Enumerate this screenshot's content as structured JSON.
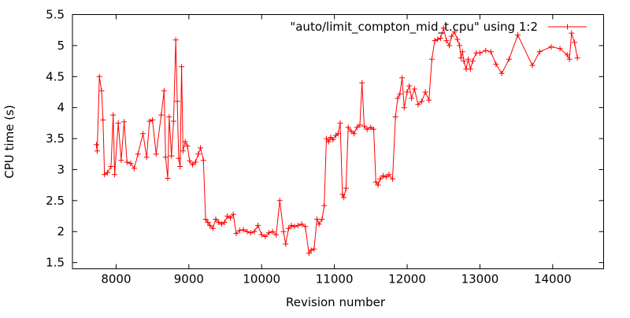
{
  "chart_data": {
    "type": "line",
    "xlabel": "Revision number",
    "ylabel": "CPU time (s)",
    "xlim": [
      7400,
      14700
    ],
    "ylim": [
      1.4,
      5.5
    ],
    "x_ticks": [
      8000,
      9000,
      10000,
      11000,
      12000,
      13000,
      14000
    ],
    "y_ticks": [
      1.5,
      2,
      2.5,
      3,
      3.5,
      4,
      4.5,
      5,
      5.5
    ],
    "x_tick_labels": [
      "8000",
      "9000",
      "10000",
      "11000",
      "12000",
      "13000",
      "14000"
    ],
    "y_tick_labels": [
      "1.5",
      "2",
      "2.5",
      "3",
      "3.5",
      "4",
      "4.5",
      "5",
      "5.5"
    ],
    "grid": false,
    "legend_position": "top-right",
    "colors": {
      "series": "#ff0000",
      "axis": "#000000"
    },
    "series": [
      {
        "name": "\"auto/limit_compton_mid_t.cpu\" using 1:2",
        "marker": "plus",
        "points": [
          [
            7730,
            3.4
          ],
          [
            7740,
            3.3
          ],
          [
            7770,
            4.5
          ],
          [
            7800,
            4.27
          ],
          [
            7820,
            3.8
          ],
          [
            7840,
            2.92
          ],
          [
            7880,
            2.95
          ],
          [
            7930,
            3.05
          ],
          [
            7960,
            3.88
          ],
          [
            7980,
            2.92
          ],
          [
            8030,
            3.75
          ],
          [
            8070,
            3.15
          ],
          [
            8110,
            3.77
          ],
          [
            8150,
            3.12
          ],
          [
            8200,
            3.1
          ],
          [
            8250,
            3.02
          ],
          [
            8300,
            3.25
          ],
          [
            8370,
            3.58
          ],
          [
            8420,
            3.2
          ],
          [
            8460,
            3.78
          ],
          [
            8500,
            3.8
          ],
          [
            8550,
            3.25
          ],
          [
            8620,
            3.88
          ],
          [
            8660,
            4.27
          ],
          [
            8680,
            3.2
          ],
          [
            8710,
            2.86
          ],
          [
            8730,
            3.85
          ],
          [
            8760,
            3.22
          ],
          [
            8790,
            3.78
          ],
          [
            8820,
            5.09
          ],
          [
            8840,
            4.1
          ],
          [
            8860,
            3.18
          ],
          [
            8880,
            3.05
          ],
          [
            8900,
            4.66
          ],
          [
            8920,
            3.3
          ],
          [
            8950,
            3.45
          ],
          [
            8980,
            3.38
          ],
          [
            9010,
            3.14
          ],
          [
            9050,
            3.08
          ],
          [
            9090,
            3.12
          ],
          [
            9130,
            3.25
          ],
          [
            9160,
            3.35
          ],
          [
            9200,
            3.15
          ],
          [
            9230,
            2.2
          ],
          [
            9260,
            2.15
          ],
          [
            9290,
            2.1
          ],
          [
            9330,
            2.05
          ],
          [
            9370,
            2.2
          ],
          [
            9410,
            2.15
          ],
          [
            9450,
            2.12
          ],
          [
            9490,
            2.15
          ],
          [
            9530,
            2.25
          ],
          [
            9570,
            2.22
          ],
          [
            9610,
            2.28
          ],
          [
            9650,
            1.97
          ],
          [
            9700,
            2.02
          ],
          [
            9750,
            2.03
          ],
          [
            9800,
            2.0
          ],
          [
            9850,
            1.98
          ],
          [
            9900,
            2.0
          ],
          [
            9950,
            2.1
          ],
          [
            10000,
            1.95
          ],
          [
            10050,
            1.92
          ],
          [
            10100,
            1.98
          ],
          [
            10150,
            2.0
          ],
          [
            10200,
            1.95
          ],
          [
            10250,
            2.5
          ],
          [
            10300,
            2.0
          ],
          [
            10330,
            1.8
          ],
          [
            10370,
            2.05
          ],
          [
            10410,
            2.1
          ],
          [
            10450,
            2.08
          ],
          [
            10500,
            2.1
          ],
          [
            10550,
            2.12
          ],
          [
            10600,
            2.08
          ],
          [
            10650,
            1.65
          ],
          [
            10680,
            1.7
          ],
          [
            10720,
            1.72
          ],
          [
            10760,
            2.2
          ],
          [
            10790,
            2.12
          ],
          [
            10830,
            2.2
          ],
          [
            10860,
            2.42
          ],
          [
            10890,
            3.5
          ],
          [
            10920,
            3.45
          ],
          [
            10950,
            3.52
          ],
          [
            10980,
            3.48
          ],
          [
            11020,
            3.55
          ],
          [
            11050,
            3.58
          ],
          [
            11080,
            3.75
          ],
          [
            11110,
            2.6
          ],
          [
            11130,
            2.55
          ],
          [
            11160,
            2.7
          ],
          [
            11190,
            3.68
          ],
          [
            11230,
            3.62
          ],
          [
            11270,
            3.58
          ],
          [
            11310,
            3.68
          ],
          [
            11350,
            3.72
          ],
          [
            11380,
            4.4
          ],
          [
            11410,
            3.7
          ],
          [
            11450,
            3.65
          ],
          [
            11500,
            3.68
          ],
          [
            11540,
            3.65
          ],
          [
            11570,
            2.8
          ],
          [
            11600,
            2.75
          ],
          [
            11630,
            2.85
          ],
          [
            11670,
            2.9
          ],
          [
            11710,
            2.88
          ],
          [
            11750,
            2.92
          ],
          [
            11800,
            2.85
          ],
          [
            11840,
            3.85
          ],
          [
            11870,
            4.15
          ],
          [
            11900,
            4.22
          ],
          [
            11930,
            4.48
          ],
          [
            11960,
            4.0
          ],
          [
            12000,
            4.25
          ],
          [
            12030,
            4.35
          ],
          [
            12060,
            4.15
          ],
          [
            12100,
            4.3
          ],
          [
            12150,
            4.05
          ],
          [
            12200,
            4.1
          ],
          [
            12250,
            4.25
          ],
          [
            12300,
            4.12
          ],
          [
            12340,
            4.78
          ],
          [
            12380,
            5.08
          ],
          [
            12420,
            5.1
          ],
          [
            12460,
            5.12
          ],
          [
            12500,
            5.28
          ],
          [
            12540,
            5.08
          ],
          [
            12580,
            5.0
          ],
          [
            12610,
            5.15
          ],
          [
            12650,
            5.22
          ],
          [
            12690,
            5.1
          ],
          [
            12720,
            5.0
          ],
          [
            12740,
            4.8
          ],
          [
            12760,
            4.9
          ],
          [
            12780,
            4.75
          ],
          [
            12810,
            4.62
          ],
          [
            12840,
            4.78
          ],
          [
            12870,
            4.62
          ],
          [
            12900,
            4.75
          ],
          [
            12950,
            4.88
          ],
          [
            13000,
            4.88
          ],
          [
            13080,
            4.92
          ],
          [
            13150,
            4.9
          ],
          [
            13220,
            4.7
          ],
          [
            13300,
            4.55
          ],
          [
            13400,
            4.78
          ],
          [
            13520,
            5.17
          ],
          [
            13720,
            4.68
          ],
          [
            13820,
            4.9
          ],
          [
            13980,
            4.98
          ],
          [
            14100,
            4.95
          ],
          [
            14200,
            4.85
          ],
          [
            14230,
            4.78
          ],
          [
            14260,
            5.2
          ],
          [
            14300,
            5.05
          ],
          [
            14340,
            4.8
          ]
        ]
      }
    ]
  }
}
